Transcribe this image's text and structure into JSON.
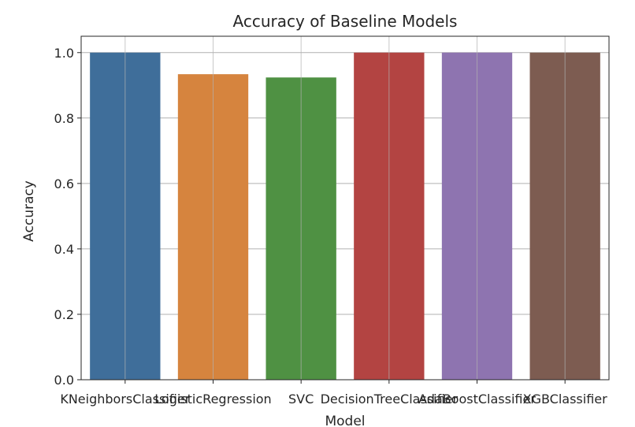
{
  "chart_data": {
    "type": "bar",
    "title": "Accuracy of Baseline Models",
    "xlabel": "Model",
    "ylabel": "Accuracy",
    "categories": [
      "KNeighborsClassifier",
      "LogisticRegression",
      "SVC",
      "DecisionTreeClassifier",
      "AdaBoostClassifier",
      "XGBClassifier"
    ],
    "values": [
      1.0,
      0.934,
      0.924,
      1.0,
      1.0,
      1.0
    ],
    "colors": [
      "#3f6e9a",
      "#d6843e",
      "#4f9143",
      "#b34442",
      "#8e74b0",
      "#7d5c51"
    ],
    "ylim": [
      0,
      1.05
    ],
    "yticks": [
      "0.0",
      "0.2",
      "0.4",
      "0.6",
      "0.8",
      "1.0"
    ],
    "grid": true
  }
}
